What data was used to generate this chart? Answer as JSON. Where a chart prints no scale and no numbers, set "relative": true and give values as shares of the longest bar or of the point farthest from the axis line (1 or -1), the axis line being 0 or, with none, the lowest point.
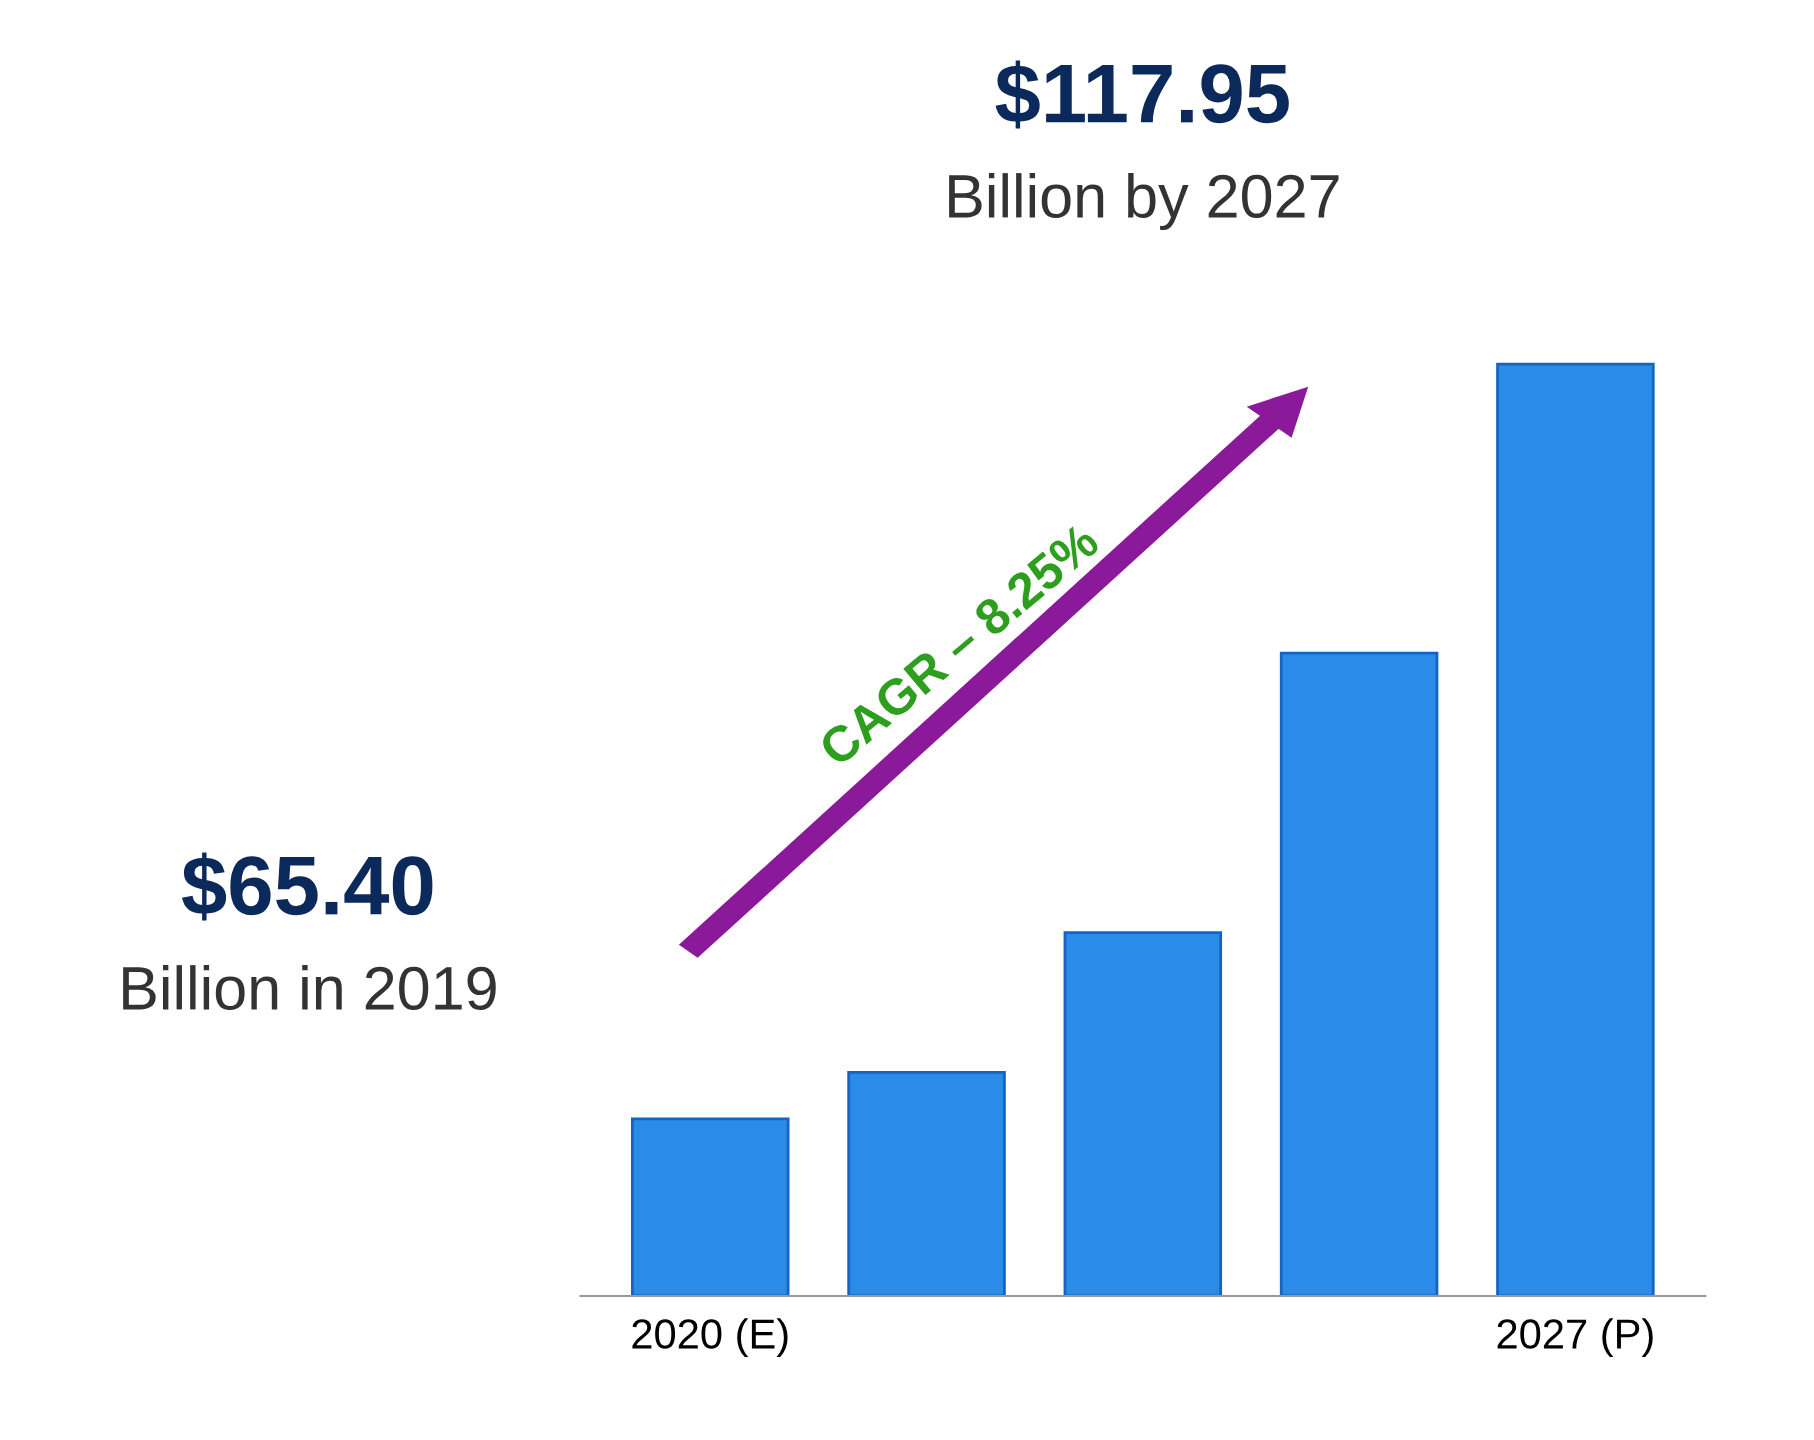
{
  "chart_data": {
    "type": "bar",
    "relative": true,
    "categories": [
      "2020 (E)",
      null,
      null,
      null,
      "2027 (P)"
    ],
    "values": [
      0.19,
      0.24,
      0.39,
      0.69,
      1.0
    ],
    "color": "#2a8be8",
    "annotations": [
      "$117.95",
      "Billion by 2027",
      "$65.40",
      "Billion in 2019",
      "CAGR – 8.25%"
    ],
    "grid": false,
    "legend": false
  }
}
